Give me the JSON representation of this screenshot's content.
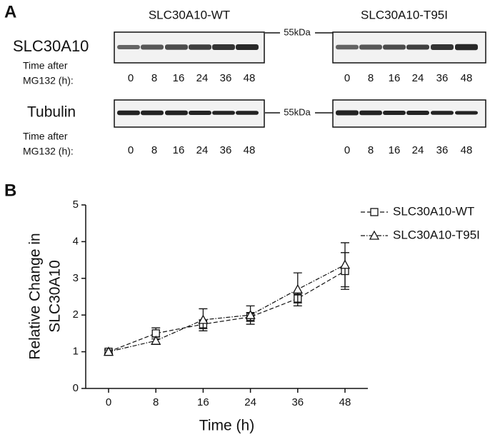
{
  "panel_labels": [
    "A",
    "B"
  ],
  "blot": {
    "columns": [
      "SLC30A10-WT",
      "SLC30A10-T95I"
    ],
    "rows": [
      {
        "protein": "SLC30A10",
        "marker": "55kDa",
        "time_label": [
          "Time after",
          "MG132 (h):"
        ],
        "times_wt": [
          "0",
          "8",
          "16",
          "24",
          "36",
          "48"
        ],
        "times_t95i": [
          "0",
          "8",
          "16",
          "24",
          "36",
          "48"
        ]
      },
      {
        "protein": "Tubulin",
        "marker": "55kDa",
        "time_label": [
          "Time after",
          "MG132 (h):"
        ],
        "times_wt": [
          "0",
          "8",
          "16",
          "24",
          "36",
          "48"
        ],
        "times_t95i": [
          "0",
          "8",
          "16",
          "24",
          "36",
          "48"
        ]
      }
    ]
  },
  "chart_data": {
    "type": "line",
    "x_label": "Time (h)",
    "y_label": [
      "Relative Change in",
      "SLC30A10"
    ],
    "categories": [
      "0",
      "8",
      "16",
      "24",
      "36",
      "48"
    ],
    "series": [
      {
        "name": "SLC30A10-WT",
        "color": "#111111",
        "marker": "square",
        "dash": "6,3",
        "values": [
          1.0,
          1.5,
          1.75,
          1.95,
          2.45,
          3.2
        ],
        "errors": [
          0.05,
          0.15,
          0.12,
          0.12,
          0.12,
          0.5
        ]
      },
      {
        "name": "SLC30A10-T95I",
        "color": "#111111",
        "marker": "triangle",
        "dash": "6,2,1.5,2",
        "values": [
          1.0,
          1.3,
          1.87,
          2.0,
          2.7,
          3.37
        ],
        "errors": [
          0.05,
          0.1,
          0.3,
          0.25,
          0.45,
          0.6
        ]
      }
    ],
    "ylim": [
      0,
      5
    ],
    "yticks": [
      0,
      1,
      2,
      3,
      4,
      5
    ],
    "legend": "top-right"
  }
}
